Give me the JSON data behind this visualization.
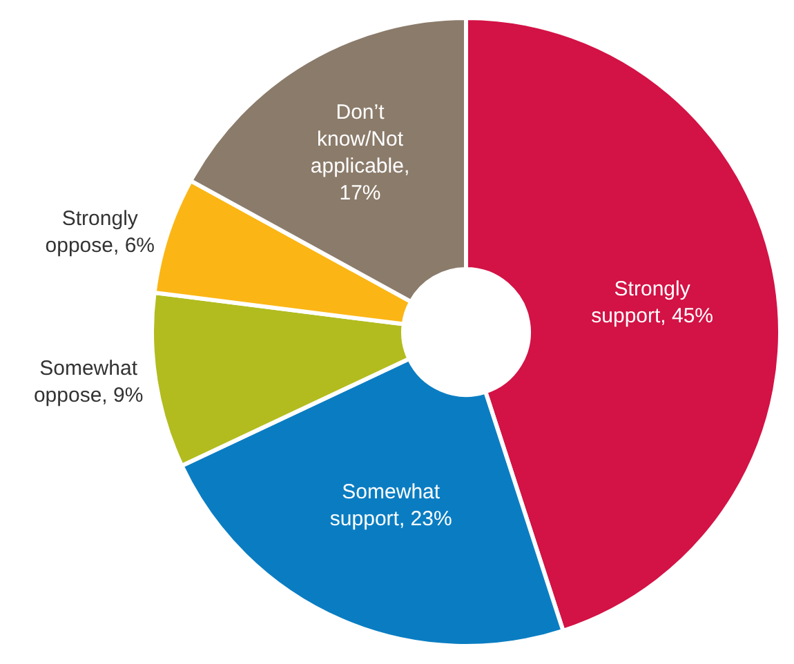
{
  "chart_data": {
    "type": "donut",
    "categories": [
      "Strongly\nsupport, 45%",
      "Somewhat\nsupport, 23%",
      "Somewhat\noppose, 9%",
      "Strongly\noppose, 6%",
      "Don’t\nknow/Not\napplicable,\n17%"
    ],
    "values": [
      45,
      23,
      9,
      6,
      17
    ],
    "colors": [
      "#d31245",
      "#0a7dc2",
      "#b2bc1e",
      "#fbb615",
      "#8b7b6a"
    ],
    "legend": false
  }
}
